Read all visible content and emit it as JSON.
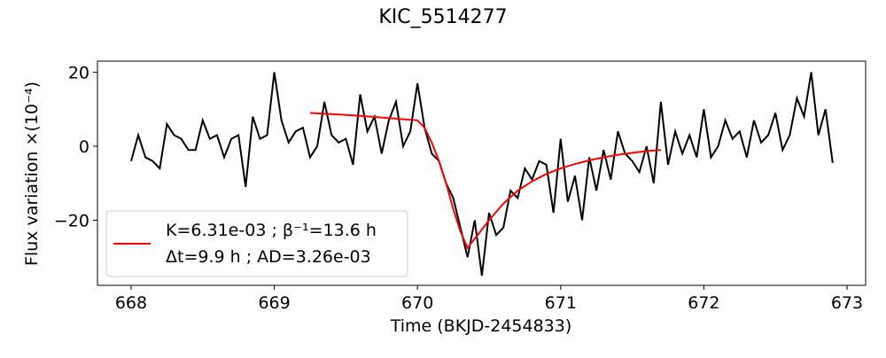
{
  "chart_data": {
    "type": "line",
    "title": "KIC_5514277",
    "xlabel": "Time (BKJD-2454833)",
    "ylabel": "Flux variation ×(10⁻⁴)",
    "xlim": [
      667.765,
      673.13
    ],
    "ylim": [
      -37.6,
      23.0
    ],
    "xticks": [
      668,
      669,
      670,
      671,
      672,
      673
    ],
    "yticks": [
      {
        "value": -20,
        "label": "−20"
      },
      0,
      20
    ],
    "grid": false,
    "legend": "lower left",
    "series": [
      {
        "color": "#000000",
        "x": [
          668.0,
          668.05,
          668.1,
          668.15,
          668.2,
          668.25,
          668.3,
          668.35,
          668.4,
          668.45,
          668.5,
          668.55,
          668.6,
          668.65,
          668.7,
          668.75,
          668.8,
          668.85,
          668.9,
          668.95,
          669.0,
          669.05,
          669.1,
          669.15,
          669.2,
          669.25,
          669.3,
          669.35,
          669.4,
          669.45,
          669.5,
          669.55,
          669.6,
          669.65,
          669.7,
          669.75,
          669.8,
          669.85,
          669.9,
          669.95,
          670.0,
          670.05,
          670.1,
          670.15,
          670.2,
          670.25,
          670.3,
          670.35,
          670.4,
          670.45,
          670.5,
          670.55,
          670.6,
          670.65,
          670.7,
          670.75,
          670.8,
          670.85,
          670.9,
          670.95,
          671.0,
          671.05,
          671.1,
          671.15,
          671.2,
          671.25,
          671.3,
          671.35,
          671.4,
          671.45,
          671.5,
          671.55,
          671.6,
          671.65,
          671.7,
          671.75,
          671.8,
          671.85,
          671.9,
          671.95,
          672.0,
          672.05,
          672.1,
          672.15,
          672.2,
          672.25,
          672.3,
          672.35,
          672.4,
          672.45,
          672.5,
          672.55,
          672.6,
          672.65,
          672.7,
          672.75,
          672.8,
          672.85,
          672.9
        ],
        "values": [
          -4,
          3,
          -3,
          -4,
          -6,
          6,
          3,
          2,
          -1,
          -1,
          7,
          2,
          3,
          -3,
          2,
          3,
          -11,
          8,
          2,
          3,
          20,
          7,
          1,
          4,
          5,
          -3,
          0,
          12,
          3,
          1,
          2,
          -5,
          14,
          4,
          8,
          -2,
          7,
          12,
          0,
          4,
          17,
          5,
          -2,
          -4,
          -10,
          -14,
          -22,
          -30,
          -20,
          -35,
          -18,
          -24,
          -22,
          -12,
          -14,
          -6,
          -9,
          -4,
          -5,
          -18,
          2,
          -15,
          -8,
          -20,
          -3,
          -12,
          -1,
          -9,
          4,
          -2,
          -4,
          -7,
          0,
          -10,
          12,
          -5,
          4,
          -2,
          3,
          -3,
          10,
          -3,
          0,
          7,
          2,
          4,
          -3,
          7,
          1,
          3,
          9,
          -1,
          3,
          13,
          8,
          20,
          3,
          10,
          -4.5
        ]
      },
      {
        "name": "K=6.31e-03 ; β⁻¹=13.6 h\nΔt=9.9 h ; AD=3.26e-03",
        "color": "#ff0000",
        "x": [
          669.25,
          669.4,
          669.6,
          669.8,
          670.0,
          670.05,
          670.1,
          670.15,
          670.2,
          670.25,
          670.3,
          670.35,
          670.4,
          670.5,
          670.6,
          670.7,
          670.8,
          670.9,
          671.0,
          671.1,
          671.2,
          671.3,
          671.4,
          671.5,
          671.6,
          671.7
        ],
        "values": [
          9,
          8.7,
          8.2,
          7.6,
          7,
          5,
          1,
          -4,
          -10,
          -17,
          -23,
          -27.5,
          -25,
          -20,
          -15.5,
          -12,
          -9.5,
          -7.5,
          -6,
          -4.8,
          -3.8,
          -3,
          -2.3,
          -1.8,
          -1.3,
          -1
        ]
      }
    ]
  }
}
